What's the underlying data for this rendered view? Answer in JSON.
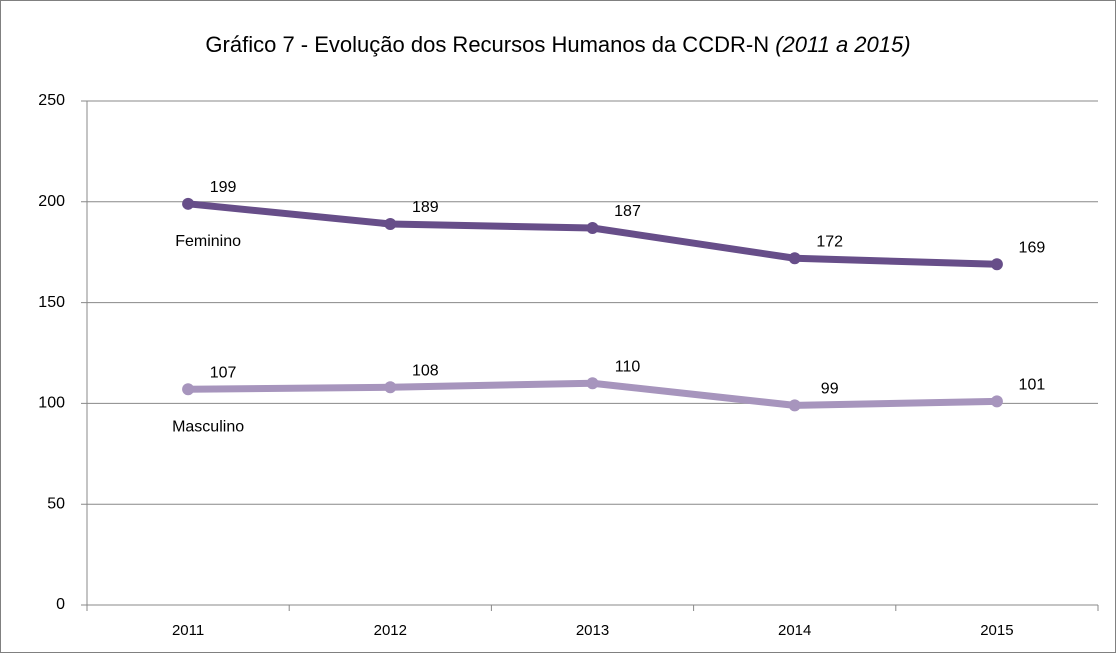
{
  "chart_data": {
    "type": "line",
    "title": "Gráfico 7 - Evolução dos Recursos Humanos da CCDR-N",
    "subtitle": "(2011 a 2015)",
    "categories": [
      "2011",
      "2012",
      "2013",
      "2014",
      "2015"
    ],
    "series": [
      {
        "name": "Feminino",
        "color": "#674e89",
        "values": [
          199,
          189,
          187,
          172,
          169
        ]
      },
      {
        "name": "Masculino",
        "color": "#a795bd",
        "values": [
          107,
          108,
          110,
          99,
          101
        ]
      }
    ],
    "ylim": [
      0,
      250
    ],
    "yticks": [
      0,
      50,
      100,
      150,
      200,
      250
    ],
    "grid": true
  }
}
